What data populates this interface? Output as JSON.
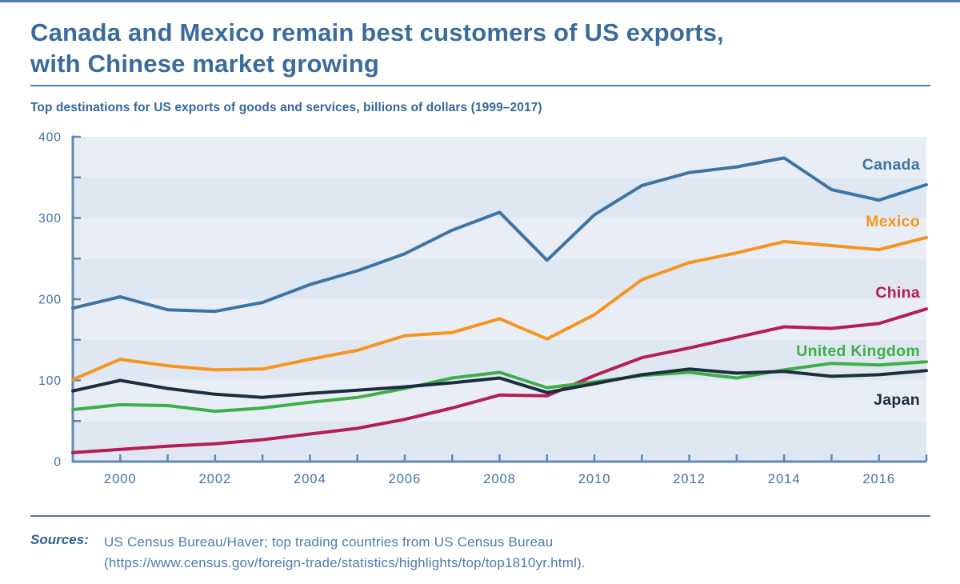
{
  "page": {
    "title_line1": "Canada and Mexico remain best customers of US exports,",
    "title_line2": "with Chinese market growing",
    "subtitle": "Top destinations for US exports of goods and services, billions of dollars (1999–2017)",
    "accent_color": "#4c7dad"
  },
  "chart_data": {
    "type": "line",
    "title": "Top destinations for US exports of goods and services, billions of dollars (1999–2017)",
    "x": [
      1999,
      2000,
      2001,
      2002,
      2003,
      2004,
      2005,
      2006,
      2007,
      2008,
      2009,
      2010,
      2011,
      2012,
      2013,
      2014,
      2015,
      2016,
      2017
    ],
    "series": [
      {
        "name": "Canada",
        "color": "#3d74a4",
        "values": [
          189,
          203,
          187,
          185,
          196,
          218,
          235,
          256,
          285,
          307,
          248,
          304,
          340,
          356,
          363,
          374,
          335,
          322,
          341
        ]
      },
      {
        "name": "Mexico",
        "color": "#f7941e",
        "values": [
          101,
          126,
          118,
          113,
          114,
          126,
          137,
          155,
          159,
          176,
          151,
          181,
          224,
          245,
          257,
          271,
          266,
          261,
          276
        ]
      },
      {
        "name": "China",
        "color": "#b51d53",
        "values": [
          11,
          15,
          19,
          22,
          27,
          34,
          41,
          52,
          66,
          82,
          81,
          106,
          128,
          140,
          153,
          166,
          164,
          170,
          188
        ]
      },
      {
        "name": "United Kingdom",
        "color": "#3fae49",
        "values": [
          64,
          70,
          69,
          62,
          66,
          73,
          79,
          90,
          103,
          110,
          91,
          98,
          106,
          110,
          103,
          113,
          121,
          119,
          123
        ]
      },
      {
        "name": "Japan",
        "color": "#1d2d3e",
        "values": [
          87,
          100,
          90,
          83,
          79,
          84,
          88,
          92,
          97,
          103,
          85,
          96,
          107,
          114,
          109,
          111,
          105,
          107,
          112
        ]
      }
    ],
    "ylim": [
      0,
      400
    ],
    "yticks": [
      0,
      100,
      200,
      300,
      400
    ],
    "ytick_minor_interval": 50,
    "xtick_labels": [
      "2000",
      "2002",
      "2004",
      "2006",
      "2008",
      "2010",
      "2012",
      "2014",
      "2016"
    ],
    "xtick_minor_interval_years": 1,
    "grid": "alternating horizontal bands every 50 units",
    "band_colors": {
      "light": "#e9eef6",
      "dark": "#dfe8f2"
    },
    "axis_color": "#6089b5",
    "tick_label_color": "#41719f",
    "legend_position": "inline labels at right end of lines"
  },
  "footer": {
    "sources_label": "Sources:",
    "line1": "US Census Bureau/Haver; top trading countries from US Census Bureau",
    "line2": "(https://www.census.gov/foreign-trade/statistics/highlights/top/top1810yr.html)."
  }
}
